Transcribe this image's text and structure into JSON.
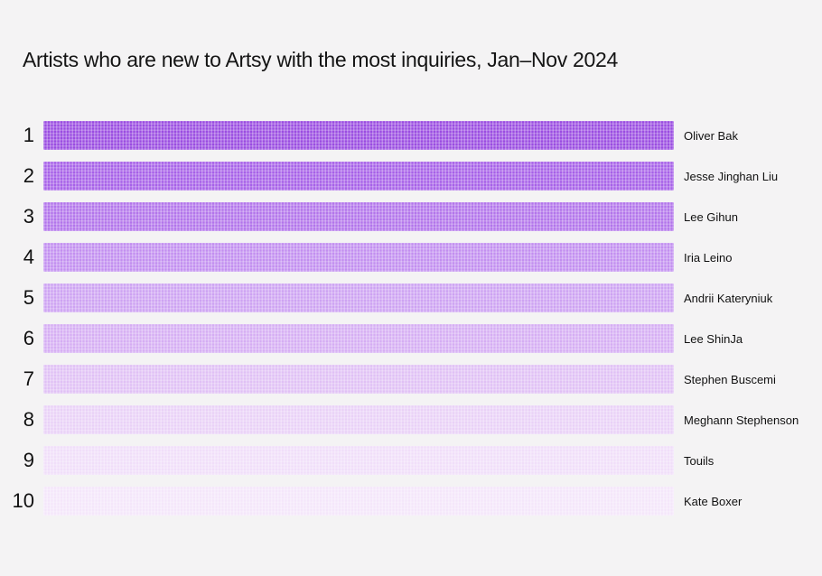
{
  "page": {
    "background_color": "#f4f3f4",
    "title": "Artists who are new to Artsy with the most inquiries, Jan–Nov 2024"
  },
  "chart_data": {
    "type": "bar",
    "orientation": "horizontal",
    "title": "Artists who are new to Artsy with the most inquiries, Jan–Nov 2024",
    "categories": [
      "Oliver Bak",
      "Jesse Jinghan Liu",
      "Lee Gihun",
      "Iria Leino",
      "Andrii Kateryniuk",
      "Lee ShinJa",
      "Stephen Buscemi",
      "Meghann Stephenson",
      "Touils",
      "Kate Boxer"
    ],
    "ranks": [
      "1",
      "2",
      "3",
      "4",
      "5",
      "6",
      "7",
      "8",
      "9",
      "10"
    ],
    "values_shown_on_chart": false,
    "values": [
      1,
      1,
      1,
      1,
      1,
      1,
      1,
      1,
      1,
      1
    ],
    "bar_colors": [
      "#9a4ce1",
      "#a660e8",
      "#b274eb",
      "#c28ef0",
      "#cda2f2",
      "#d5adf3",
      "#e0c0f5",
      "#e9d1f7",
      "#f0def9",
      "#f4e6fa"
    ],
    "bar_texture": "light dot-grid pattern",
    "legend": "none",
    "axes": "none (ranked list, equal-length bars shaded dark-to-light by rank)"
  }
}
